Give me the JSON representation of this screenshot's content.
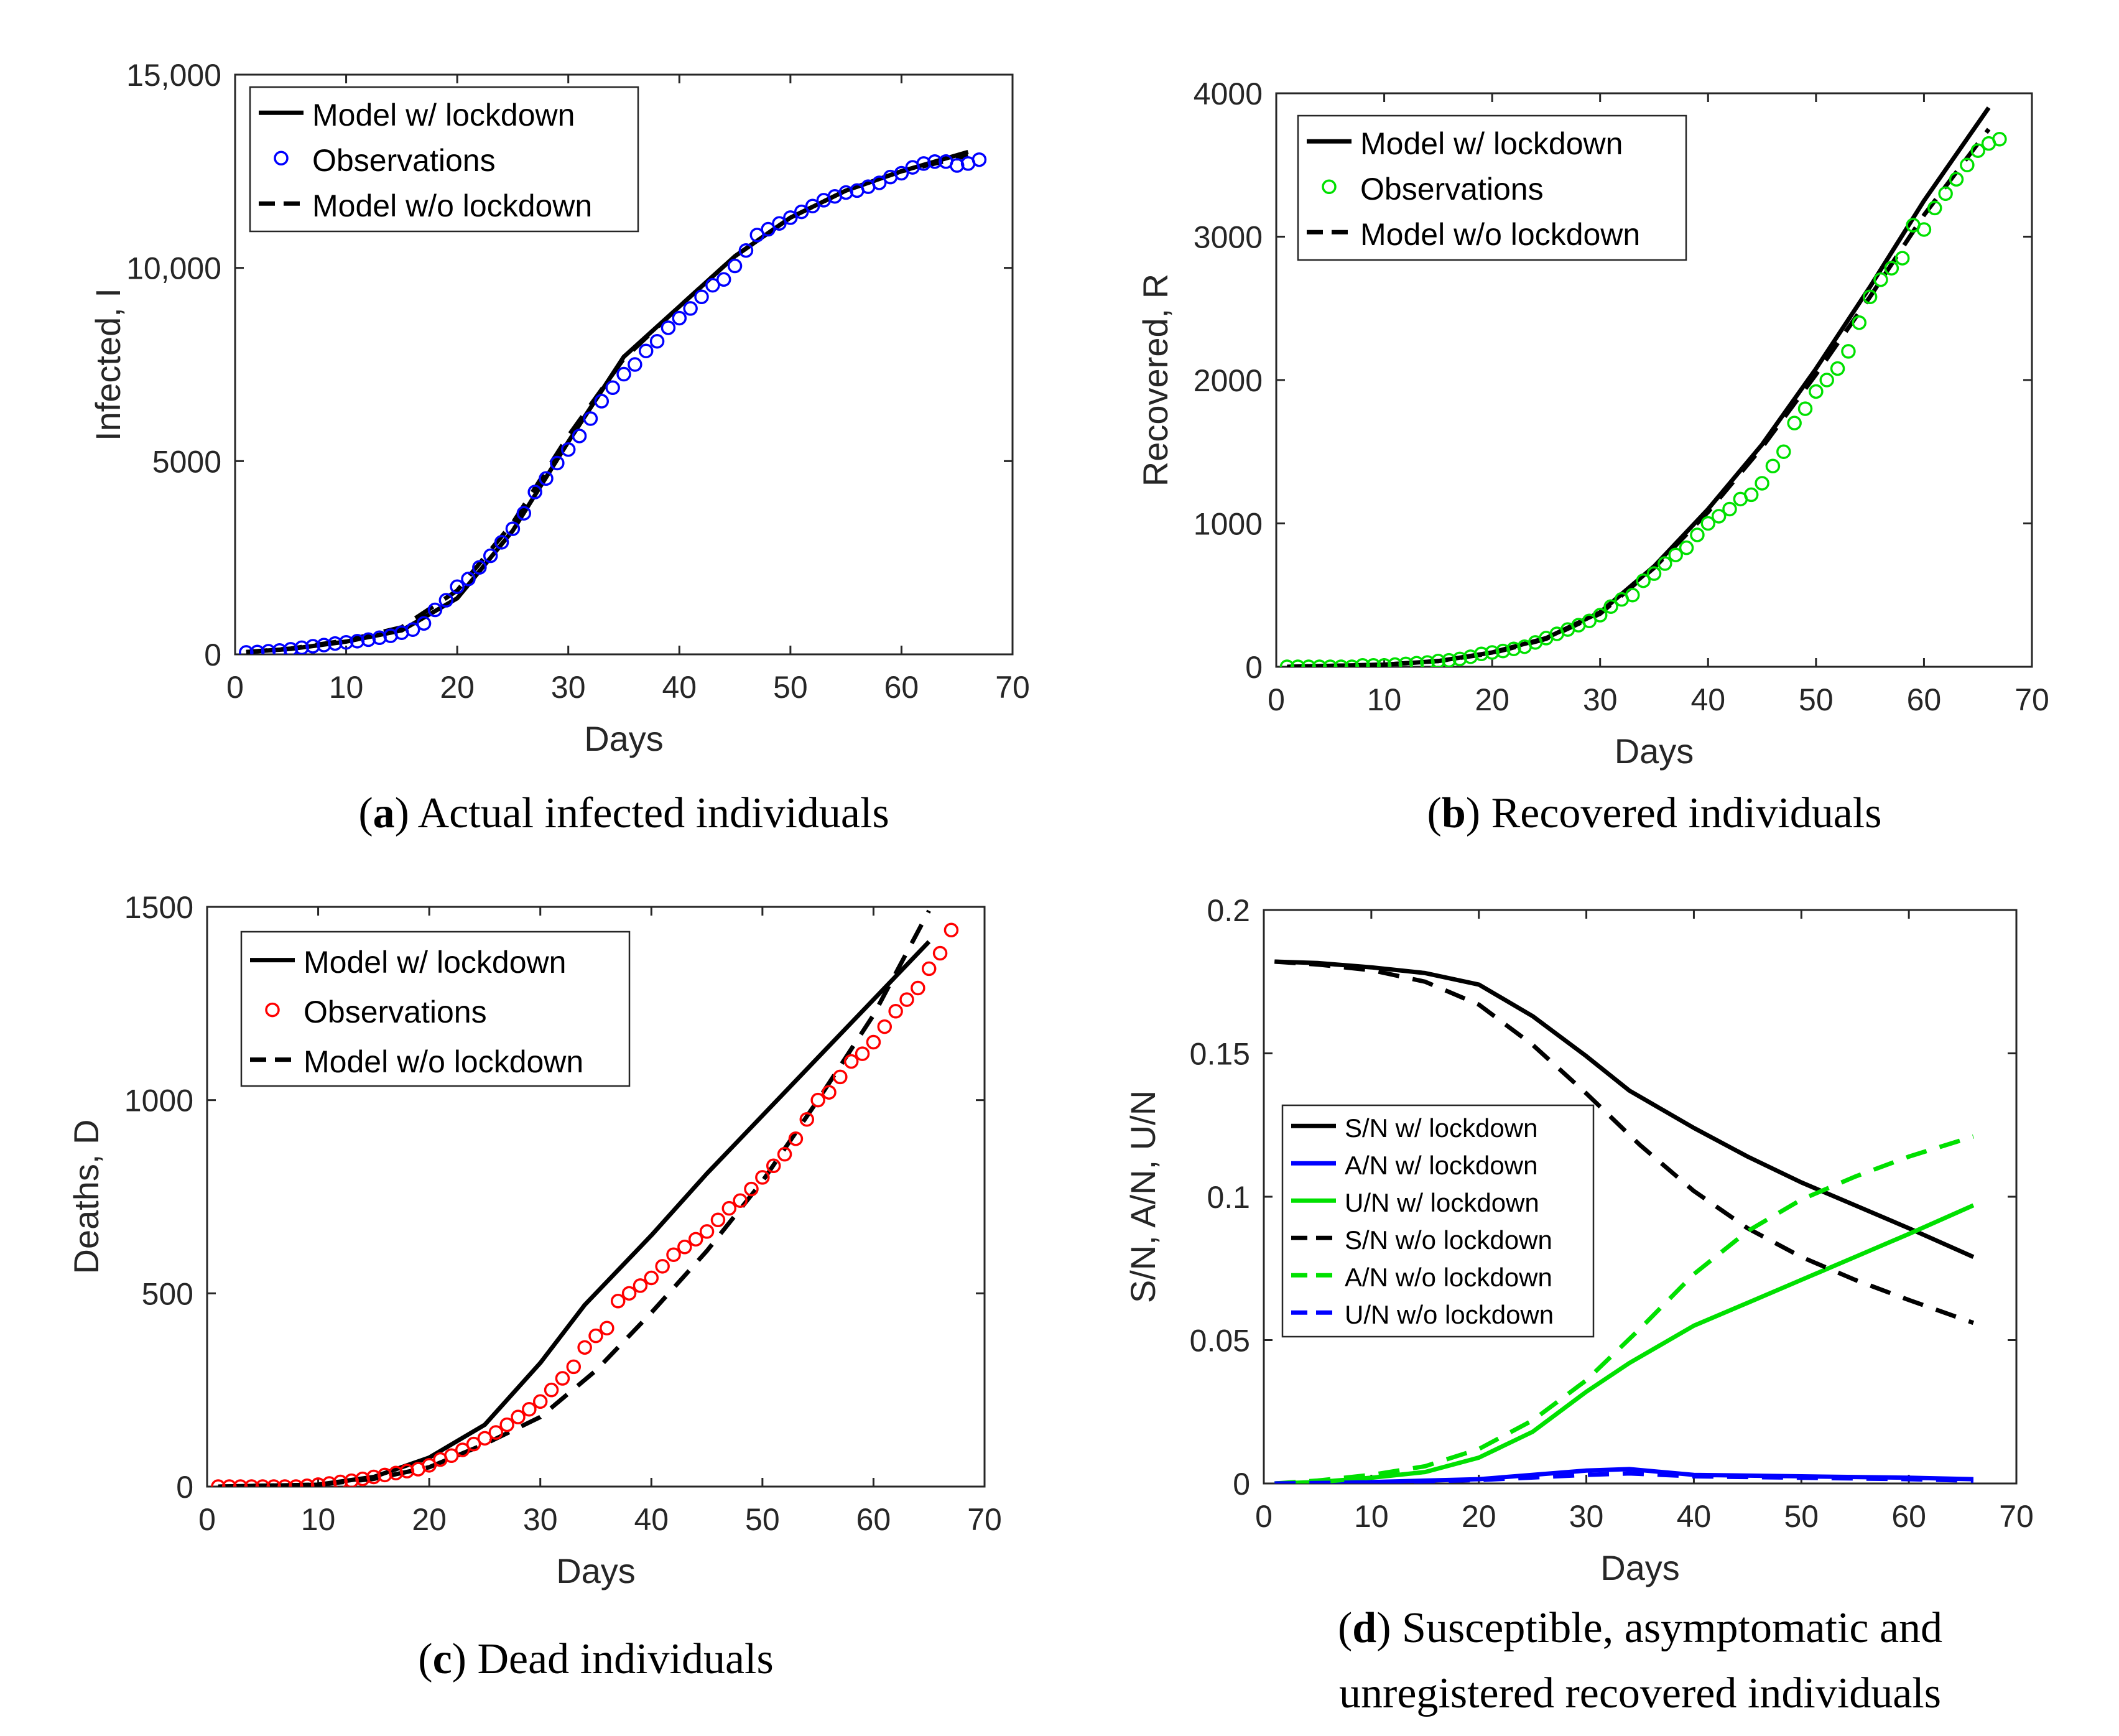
{
  "chart_data": [
    {
      "id": "a",
      "type": "line",
      "caption_letter": "a",
      "caption_text": "Actual infected individuals",
      "xlabel": "Days",
      "ylabel": "Infected, I",
      "xlim": [
        0,
        70
      ],
      "ylim": [
        0,
        15000
      ],
      "xticks": [
        "0",
        "10",
        "20",
        "30",
        "40",
        "50",
        "60",
        "70"
      ],
      "yticks": [
        "0",
        "5000",
        "10,000",
        "15,000"
      ],
      "ytick_values": [
        0,
        5000,
        10000,
        15000
      ],
      "legend": {
        "location": "top-left",
        "entries": [
          "Model w/ lockdown",
          "Observations",
          "Model w/o lockdown"
        ]
      },
      "obs_color": "#0000ff",
      "series": [
        {
          "name": "Model w/ lockdown",
          "style": "solid",
          "color": "#000000",
          "x": [
            1,
            5,
            10,
            15,
            20,
            25,
            30,
            35,
            40,
            45,
            50,
            55,
            60,
            66
          ],
          "y": [
            60,
            140,
            330,
            620,
            1450,
            3200,
            5500,
            7700,
            9000,
            10300,
            11300,
            12000,
            12500,
            13000
          ]
        },
        {
          "name": "Model w/o lockdown",
          "style": "dashed",
          "color": "#000000",
          "x": [
            1,
            5,
            10,
            15,
            20,
            25,
            30,
            35,
            40,
            45,
            50,
            55,
            60,
            66
          ],
          "y": [
            60,
            150,
            360,
            700,
            1650,
            3400,
            5650,
            7650,
            9000,
            10300,
            11300,
            12000,
            12500,
            12900
          ]
        },
        {
          "name": "Observations",
          "style": "markers",
          "color": "#0000ff",
          "x": [
            1,
            2,
            3,
            4,
            5,
            6,
            7,
            8,
            9,
            10,
            11,
            12,
            13,
            14,
            15,
            16,
            17,
            18,
            19,
            20,
            21,
            22,
            23,
            24,
            25,
            26,
            27,
            28,
            29,
            30,
            31,
            32,
            33,
            34,
            35,
            36,
            37,
            38,
            39,
            40,
            41,
            42,
            43,
            44,
            45,
            46,
            47,
            48,
            49,
            50,
            51,
            52,
            53,
            54,
            55,
            56,
            57,
            58,
            59,
            60,
            61,
            62,
            63,
            64,
            65,
            66,
            67
          ],
          "y": [
            50,
            60,
            80,
            100,
            130,
            170,
            210,
            240,
            280,
            310,
            340,
            380,
            430,
            480,
            560,
            640,
            800,
            1150,
            1400,
            1750,
            1950,
            2250,
            2550,
            2900,
            3250,
            3650,
            4200,
            4550,
            4950,
            5300,
            5650,
            6100,
            6550,
            6900,
            7250,
            7500,
            7850,
            8100,
            8450,
            8700,
            8950,
            9250,
            9550,
            9700,
            10050,
            10450,
            10850,
            11000,
            11150,
            11300,
            11450,
            11600,
            11750,
            11850,
            11950,
            12000,
            12100,
            12200,
            12350,
            12450,
            12600,
            12700,
            12750,
            12750,
            12650,
            12700,
            12800
          ]
        }
      ]
    },
    {
      "id": "b",
      "type": "line",
      "caption_letter": "b",
      "caption_text": "Recovered individuals",
      "xlabel": "Days",
      "ylabel": "Recovered, R",
      "xlim": [
        0,
        70
      ],
      "ylim": [
        0,
        4000
      ],
      "xticks": [
        "0",
        "10",
        "20",
        "30",
        "40",
        "50",
        "60",
        "70"
      ],
      "yticks": [
        "0",
        "1000",
        "2000",
        "3000",
        "4000"
      ],
      "ytick_values": [
        0,
        1000,
        2000,
        3000,
        4000
      ],
      "legend": {
        "location": "top-left",
        "entries": [
          "Model w/ lockdown",
          "Observations",
          "Model w/o lockdown"
        ]
      },
      "obs_color": "#00e000",
      "series": [
        {
          "name": "Model w/ lockdown",
          "style": "solid",
          "color": "#000000",
          "x": [
            1,
            10,
            15,
            20,
            25,
            30,
            35,
            40,
            45,
            50,
            55,
            60,
            66
          ],
          "y": [
            0,
            15,
            40,
            100,
            200,
            380,
            700,
            1100,
            1550,
            2080,
            2650,
            3250,
            3900
          ]
        },
        {
          "name": "Model w/o lockdown",
          "style": "dashed",
          "color": "#000000",
          "x": [
            1,
            10,
            15,
            20,
            25,
            30,
            35,
            40,
            45,
            50,
            55,
            60,
            66
          ],
          "y": [
            0,
            15,
            40,
            95,
            195,
            370,
            690,
            1080,
            1530,
            2040,
            2580,
            3150,
            3750
          ]
        },
        {
          "name": "Observations",
          "style": "markers",
          "color": "#00e000",
          "x": [
            1,
            2,
            3,
            4,
            5,
            6,
            7,
            8,
            9,
            10,
            11,
            12,
            13,
            14,
            15,
            16,
            17,
            18,
            19,
            20,
            21,
            22,
            23,
            24,
            25,
            26,
            27,
            28,
            29,
            30,
            31,
            32,
            33,
            34,
            35,
            36,
            37,
            38,
            39,
            40,
            41,
            42,
            43,
            44,
            45,
            46,
            47,
            48,
            49,
            50,
            51,
            52,
            53,
            54,
            55,
            56,
            57,
            58,
            59,
            60,
            61,
            62,
            63,
            64,
            65,
            66,
            67
          ],
          "y": [
            0,
            0,
            0,
            0,
            0,
            0,
            0,
            10,
            10,
            10,
            15,
            20,
            25,
            30,
            40,
            45,
            55,
            70,
            90,
            100,
            110,
            125,
            140,
            170,
            200,
            230,
            260,
            290,
            320,
            360,
            420,
            470,
            500,
            600,
            650,
            720,
            780,
            830,
            920,
            1000,
            1050,
            1100,
            1170,
            1200,
            1280,
            1400,
            1500,
            1700,
            1800,
            1920,
            2000,
            2080,
            2200,
            2400,
            2580,
            2700,
            2780,
            2850,
            3080,
            3050,
            3200,
            3300,
            3400,
            3500,
            3600,
            3650,
            3680
          ]
        }
      ]
    },
    {
      "id": "c",
      "type": "line",
      "caption_letter": "c",
      "caption_text": "Dead individuals",
      "xlabel": "Days",
      "ylabel": "Deaths, D",
      "xlim": [
        0,
        70
      ],
      "ylim": [
        0,
        1500
      ],
      "xticks": [
        "0",
        "10",
        "20",
        "30",
        "40",
        "50",
        "60",
        "70"
      ],
      "yticks": [
        "0",
        "500",
        "1000",
        "1500"
      ],
      "ytick_values": [
        0,
        500,
        1000,
        1500
      ],
      "legend": {
        "location": "top-left",
        "entries": [
          "Model w/ lockdown",
          "Observations",
          "Model w/o lockdown"
        ]
      },
      "obs_color": "#ff0000",
      "series": [
        {
          "name": "Model w/ lockdown",
          "style": "solid",
          "color": "#000000",
          "x": [
            1,
            10,
            15,
            20,
            25,
            30,
            34,
            40,
            45,
            50,
            55,
            60,
            65
          ],
          "y": [
            0,
            5,
            25,
            75,
            160,
            320,
            470,
            650,
            810,
            960,
            1110,
            1260,
            1410
          ]
        },
        {
          "name": "Model w/o lockdown",
          "style": "dashed",
          "color": "#000000",
          "x": [
            1,
            10,
            15,
            20,
            25,
            30,
            35,
            40,
            45,
            50,
            55,
            60,
            65
          ],
          "y": [
            0,
            5,
            20,
            50,
            110,
            180,
            300,
            450,
            610,
            790,
            1000,
            1220,
            1490
          ]
        },
        {
          "name": "Observations",
          "style": "markers",
          "color": "#ff0000",
          "x": [
            1,
            2,
            3,
            4,
            5,
            6,
            7,
            8,
            9,
            10,
            11,
            12,
            13,
            14,
            15,
            16,
            17,
            18,
            19,
            20,
            21,
            22,
            23,
            24,
            25,
            26,
            27,
            28,
            29,
            30,
            31,
            32,
            33,
            34,
            35,
            36,
            37,
            38,
            39,
            40,
            41,
            42,
            43,
            44,
            45,
            46,
            47,
            48,
            49,
            50,
            51,
            52,
            53,
            54,
            55,
            56,
            57,
            58,
            59,
            60,
            61,
            62,
            63,
            64,
            65,
            66,
            67
          ],
          "y": [
            0,
            0,
            0,
            0,
            0,
            0,
            0,
            0,
            2,
            5,
            8,
            12,
            15,
            20,
            25,
            30,
            35,
            40,
            45,
            55,
            70,
            80,
            95,
            110,
            125,
            140,
            160,
            180,
            200,
            220,
            250,
            280,
            310,
            360,
            390,
            410,
            480,
            500,
            520,
            540,
            570,
            600,
            620,
            640,
            660,
            690,
            720,
            740,
            770,
            800,
            830,
            860,
            900,
            950,
            1000,
            1020,
            1060,
            1100,
            1120,
            1150,
            1190,
            1230,
            1260,
            1290,
            1340,
            1380,
            1440
          ]
        }
      ]
    },
    {
      "id": "d",
      "type": "line",
      "caption_letter": "d",
      "caption_text": "Susceptible, asymptomatic and",
      "caption_text_line2": "unregistered recovered individuals",
      "xlabel": "Days",
      "ylabel": "S/N, A/N, U/N",
      "xlim": [
        0,
        70
      ],
      "ylim": [
        0,
        0.2
      ],
      "xticks": [
        "0",
        "10",
        "20",
        "30",
        "40",
        "50",
        "60",
        "70"
      ],
      "yticks": [
        "0",
        "0.05",
        "0.1",
        "0.15",
        "0.2"
      ],
      "ytick_values": [
        0,
        0.05,
        0.1,
        0.15,
        0.2
      ],
      "legend": {
        "location": "center-left",
        "entries": [
          "S/N w/ lockdown",
          "A/N w/ lockdown",
          "U/N w/ lockdown",
          "S/N w/o lockdown",
          "A/N w/o lockdown",
          "U/N w/o lockdown"
        ]
      },
      "series": [
        {
          "name": "S/N w/ lockdown",
          "style": "solid",
          "color": "#000000",
          "x": [
            1,
            5,
            10,
            15,
            20,
            25,
            30,
            34,
            40,
            45,
            50,
            55,
            60,
            66
          ],
          "y": [
            0.182,
            0.1815,
            0.18,
            0.178,
            0.174,
            0.163,
            0.149,
            0.137,
            0.124,
            0.114,
            0.105,
            0.097,
            0.089,
            0.079
          ]
        },
        {
          "name": "A/N w/ lockdown",
          "style": "solid",
          "color": "#0000ff",
          "x": [
            1,
            10,
            20,
            30,
            34,
            40,
            50,
            60,
            66
          ],
          "y": [
            0,
            0.0005,
            0.0015,
            0.0045,
            0.005,
            0.003,
            0.0025,
            0.002,
            0.0015
          ]
        },
        {
          "name": "U/N w/ lockdown",
          "style": "solid",
          "color": "#00e000",
          "x": [
            1,
            5,
            10,
            15,
            20,
            25,
            30,
            34,
            40,
            45,
            50,
            55,
            60,
            66
          ],
          "y": [
            0,
            0.0005,
            0.002,
            0.004,
            0.009,
            0.018,
            0.032,
            0.042,
            0.055,
            0.063,
            0.071,
            0.079,
            0.087,
            0.097
          ]
        },
        {
          "name": "S/N w/o lockdown",
          "style": "dashed",
          "color": "#000000",
          "x": [
            1,
            5,
            10,
            15,
            20,
            25,
            30,
            35,
            40,
            45,
            50,
            55,
            60,
            66
          ],
          "y": [
            0.182,
            0.181,
            0.179,
            0.175,
            0.167,
            0.153,
            0.136,
            0.118,
            0.102,
            0.089,
            0.079,
            0.071,
            0.064,
            0.056
          ]
        },
        {
          "name": "A/N w/o lockdown",
          "style": "dashed",
          "color": "#00e000",
          "x": [
            1,
            5,
            10,
            15,
            20,
            25,
            30,
            35,
            40,
            45,
            50,
            55,
            60,
            66
          ],
          "y": [
            0,
            0.001,
            0.003,
            0.006,
            0.012,
            0.022,
            0.036,
            0.054,
            0.073,
            0.088,
            0.099,
            0.107,
            0.114,
            0.121
          ]
        },
        {
          "name": "U/N w/o lockdown",
          "style": "dashed",
          "color": "#0000ff",
          "x": [
            1,
            10,
            20,
            30,
            34,
            40,
            50,
            60,
            66
          ],
          "y": [
            0,
            0.0004,
            0.0012,
            0.003,
            0.0035,
            0.0025,
            0.002,
            0.0015,
            0.001
          ]
        }
      ]
    }
  ]
}
